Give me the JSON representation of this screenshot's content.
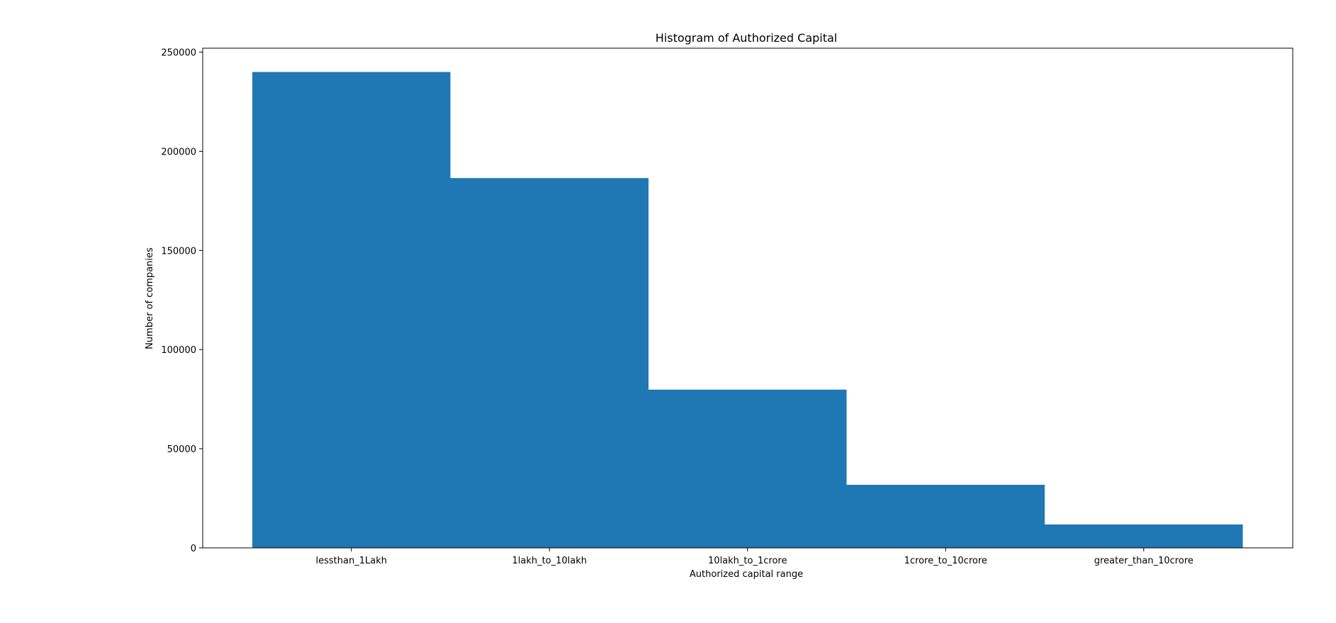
{
  "chart_data": {
    "type": "bar",
    "title": "Histogram of Authorized Capital",
    "xlabel": "Authorized capital range",
    "ylabel": "Number of companies",
    "categories": [
      "lessthan_1Lakh",
      "1lakh_to_10lakh",
      "10lakh_to_1crore",
      "1crore_to_10crore",
      "greater_than_10crore"
    ],
    "values": [
      240000,
      186500,
      79800,
      31800,
      11800
    ],
    "ylim": [
      0,
      252000
    ],
    "yticks": [
      0,
      50000,
      100000,
      150000,
      200000,
      250000
    ],
    "bar_color": "#1f77b4",
    "grid": false
  }
}
